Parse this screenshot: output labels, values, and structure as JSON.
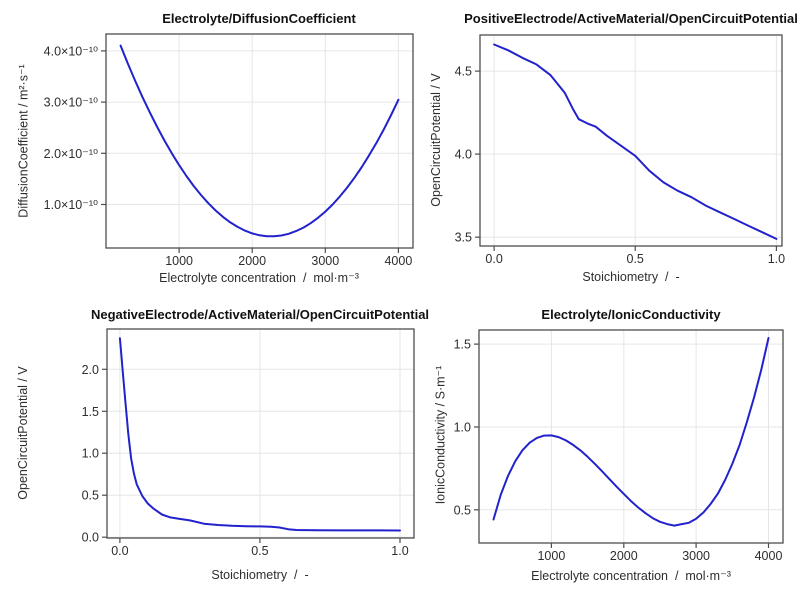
{
  "figure": {
    "style": {
      "background": "#ffffff",
      "grid_color": "#e6e6e6",
      "frame_color": "#4d4d4d",
      "tick_color": "#4d4d4d",
      "text_color": "#2e2e2e",
      "title_color": "#111111"
    }
  },
  "chart_data": [
    {
      "type": "line",
      "title": "Electrolyte/DiffusionCoefficient",
      "xlabel": "Electrolyte concentration  /  mol·m⁻³",
      "ylabel": "DiffusionCoefficient / m²·s⁻¹",
      "line_color": "#2222cc",
      "grid": true,
      "legend": "none",
      "xlim": [
        0,
        4200
      ],
      "ylim": [
        1.5e-11,
        4.33e-10
      ],
      "xticks": {
        "values": [
          1000,
          2000,
          3000,
          4000
        ],
        "labels": [
          "1000",
          "2000",
          "3000",
          "4000"
        ]
      },
      "yticks": {
        "values": [
          1e-10,
          2e-10,
          3e-10,
          4e-10
        ],
        "labels": [
          "1.0×10⁻¹⁰",
          "2.0×10⁻¹⁰",
          "3.0×10⁻¹⁰",
          "4.0×10⁻¹⁰"
        ]
      },
      "x": [
        200,
        300,
        400,
        500,
        600,
        700,
        800,
        900,
        1000,
        1100,
        1200,
        1300,
        1400,
        1500,
        1600,
        1700,
        1800,
        1900,
        2000,
        2100,
        2200,
        2300,
        2400,
        2500,
        2600,
        2700,
        2800,
        2900,
        3000,
        3100,
        3200,
        3300,
        3400,
        3500,
        3600,
        3700,
        3800,
        3900,
        4000
      ],
      "y": [
        4.103e-10,
        3.75e-10,
        3.414e-10,
        3.096e-10,
        2.795e-10,
        2.513e-10,
        2.247e-10,
        1.999e-10,
        1.769e-10,
        1.557e-10,
        1.362e-10,
        1.185e-10,
        1.025e-10,
        8.83e-11,
        7.58e-11,
        6.51e-11,
        5.62e-11,
        4.9e-11,
        4.36e-11,
        3.99e-11,
        3.8e-11,
        3.78e-11,
        3.94e-11,
        4.28e-11,
        4.8e-11,
        5.48e-11,
        6.35e-11,
        7.39e-11,
        8.61e-11,
        1e-10,
        1.157e-10,
        1.331e-10,
        1.523e-10,
        1.733e-10,
        1.96e-10,
        2.205e-10,
        2.467e-10,
        2.747e-10,
        3.044e-10
      ]
    },
    {
      "type": "line",
      "title": "PositiveElectrode/ActiveMaterial/OpenCircuitPotential",
      "xlabel": "Stoichiometry  /  -",
      "ylabel": "OpenCircuitPotential / V",
      "line_color": "#2222cc",
      "grid": true,
      "legend": "none",
      "xlim": [
        -0.05,
        1.02
      ],
      "ylim": [
        3.447,
        4.717
      ],
      "xticks": {
        "values": [
          0,
          0.5,
          1
        ],
        "labels": [
          "0.0",
          "0.5",
          "1.0"
        ]
      },
      "yticks": {
        "values": [
          3.5,
          4.0,
          4.5
        ],
        "labels": [
          "3.5",
          "4.0",
          "4.5"
        ]
      },
      "x": [
        0,
        0.05,
        0.1,
        0.15,
        0.2,
        0.25,
        0.28,
        0.3,
        0.33,
        0.36,
        0.4,
        0.45,
        0.5,
        0.55,
        0.6,
        0.65,
        0.7,
        0.75,
        0.8,
        0.85,
        0.9,
        0.95,
        1.0
      ],
      "y": [
        4.66,
        4.625,
        4.58,
        4.54,
        4.475,
        4.37,
        4.27,
        4.21,
        4.185,
        4.165,
        4.11,
        4.05,
        3.99,
        3.9,
        3.83,
        3.78,
        3.74,
        3.69,
        3.65,
        3.61,
        3.57,
        3.53,
        3.49
      ]
    },
    {
      "type": "line",
      "title": "NegativeElectrode/ActiveMaterial/OpenCircuitPotential",
      "xlabel": "Stoichiometry  /  -",
      "ylabel": "OpenCircuitPotential / V",
      "line_color": "#2222cc",
      "grid": true,
      "legend": "none",
      "xlim": [
        -0.046,
        1.05
      ],
      "ylim": [
        -0.01,
        2.48
      ],
      "xticks": {
        "values": [
          0,
          0.5,
          1
        ],
        "labels": [
          "0.0",
          "0.5",
          "1.0"
        ]
      },
      "yticks": {
        "values": [
          0,
          0.5,
          1.0,
          1.5,
          2.0
        ],
        "labels": [
          "0.0",
          "0.5",
          "1.0",
          "1.5",
          "2.0"
        ]
      },
      "x": [
        0,
        0.005,
        0.01,
        0.02,
        0.03,
        0.04,
        0.05,
        0.06,
        0.08,
        0.1,
        0.12,
        0.15,
        0.18,
        0.21,
        0.25,
        0.3,
        0.35,
        0.4,
        0.45,
        0.5,
        0.54,
        0.57,
        0.6,
        0.63,
        0.7,
        0.8,
        0.9,
        1.0
      ],
      "y": [
        2.37,
        2.18,
        1.98,
        1.6,
        1.23,
        0.94,
        0.76,
        0.63,
        0.49,
        0.4,
        0.34,
        0.27,
        0.235,
        0.22,
        0.2,
        0.16,
        0.145,
        0.135,
        0.13,
        0.128,
        0.125,
        0.115,
        0.095,
        0.085,
        0.082,
        0.081,
        0.08,
        0.079
      ]
    },
    {
      "type": "line",
      "title": "Electrolyte/IonicConductivity",
      "xlabel": "Electrolyte concentration  /  mol·m⁻³",
      "ylabel": "IonicConductivity / S·m⁻¹",
      "line_color": "#2222cc",
      "grid": true,
      "legend": "none",
      "xlim": [
        0,
        4200
      ],
      "ylim": [
        0.3,
        1.585
      ],
      "xticks": {
        "values": [
          1000,
          2000,
          3000,
          4000
        ],
        "labels": [
          "1000",
          "2000",
          "3000",
          "4000"
        ]
      },
      "yticks": {
        "values": [
          0.5,
          1.0,
          1.5
        ],
        "labels": [
          "0.5",
          "1.0",
          "1.5"
        ]
      },
      "x": [
        200,
        300,
        400,
        500,
        600,
        700,
        800,
        900,
        1000,
        1100,
        1200,
        1300,
        1400,
        1500,
        1600,
        1700,
        1800,
        1900,
        2000,
        2100,
        2200,
        2300,
        2400,
        2500,
        2600,
        2700,
        2800,
        2900,
        3000,
        3100,
        3200,
        3300,
        3400,
        3500,
        3600,
        3700,
        3800,
        3900,
        4000
      ],
      "y": [
        0.442,
        0.59,
        0.705,
        0.793,
        0.859,
        0.905,
        0.934,
        0.948,
        0.949,
        0.939,
        0.919,
        0.892,
        0.859,
        0.82,
        0.778,
        0.733,
        0.687,
        0.64,
        0.596,
        0.553,
        0.514,
        0.48,
        0.45,
        0.428,
        0.414,
        0.405,
        0.414,
        0.422,
        0.446,
        0.484,
        0.535,
        0.598,
        0.68,
        0.777,
        0.891,
        1.028,
        1.177,
        1.346,
        1.537
      ]
    }
  ]
}
